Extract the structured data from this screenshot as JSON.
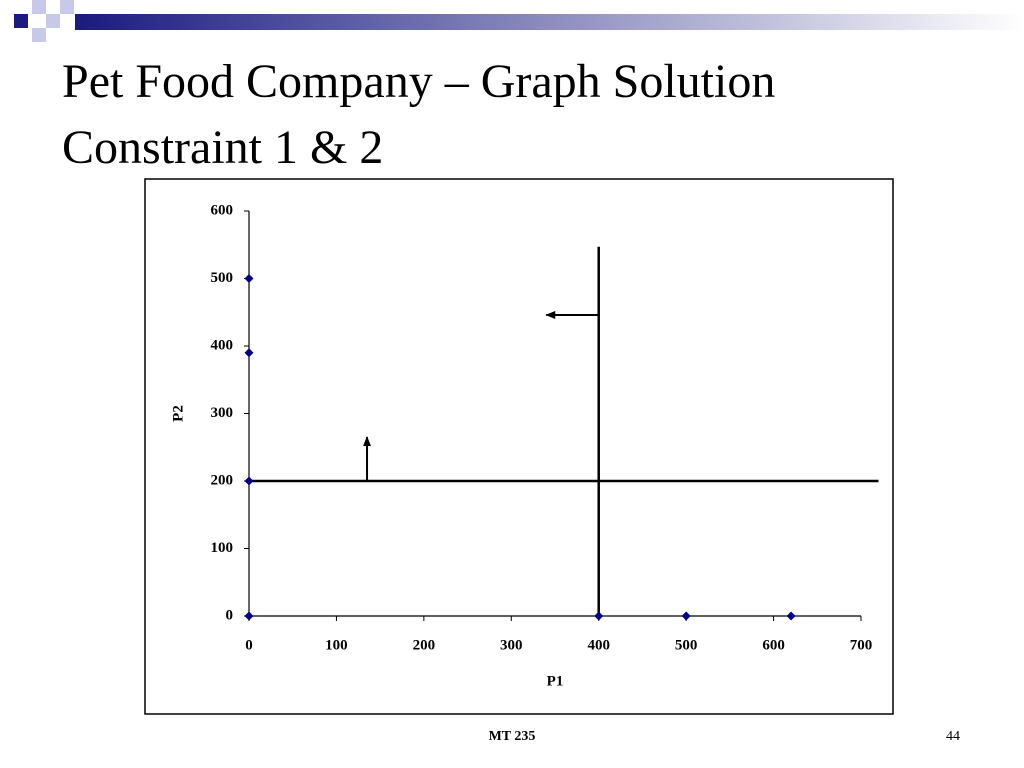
{
  "slide": {
    "title_line1": "Pet Food Company – Graph Solution",
    "title_line2": "Constraint 1 & 2",
    "footer": "MT 235",
    "page_number": "44"
  },
  "chart_data": {
    "type": "scatter",
    "xlabel": "P1",
    "ylabel": "P2",
    "x": [
      0,
      0,
      0,
      0,
      400,
      500,
      620
    ],
    "values": [
      500,
      390,
      200,
      0,
      0,
      0,
      0
    ],
    "color": "#000080",
    "lines": [
      {
        "x": [
          0,
          720
        ],
        "values": [
          200,
          200
        ]
      },
      {
        "x": [
          400,
          400
        ],
        "values": [
          0,
          547
        ]
      }
    ],
    "arrows": [
      {
        "x": [
          400,
          340
        ],
        "values": [
          446,
          446
        ]
      },
      {
        "x": [
          135,
          135
        ],
        "values": [
          200,
          265
        ]
      }
    ],
    "line_color": "#000000",
    "xlim": [
      0,
      700
    ],
    "ylim": [
      0,
      600
    ],
    "xticks": [
      0,
      100,
      200,
      300,
      400,
      500,
      600,
      700
    ],
    "yticks": [
      0,
      100,
      200,
      300,
      400,
      500,
      600
    ]
  }
}
